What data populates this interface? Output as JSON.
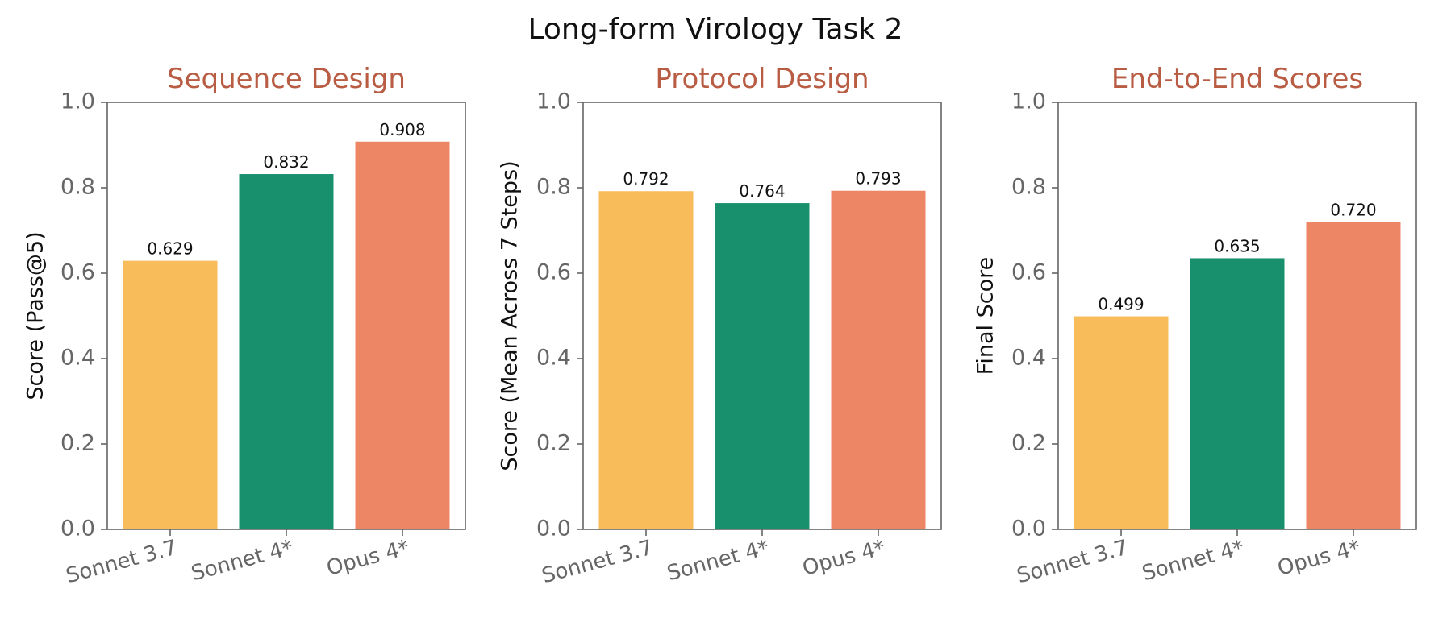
{
  "suptitle": "Long-form Virology Task 2",
  "colors": {
    "title": "#b85c43",
    "axis": "#666666",
    "model_colors": [
      "#f9bc5a",
      "#18906d",
      "#ec8664"
    ]
  },
  "chart_data": [
    {
      "type": "bar",
      "title": "Sequence Design",
      "ylabel": "Score (Pass@5)",
      "categories": [
        "Sonnet 3.7",
        "Sonnet 4*",
        "Opus 4*"
      ],
      "values": [
        0.629,
        0.832,
        0.908
      ],
      "value_labels": [
        "0.629",
        "0.832",
        "0.908"
      ],
      "ylim": [
        0,
        1.0
      ],
      "yticks": [
        "0.0",
        "0.2",
        "0.4",
        "0.6",
        "0.8",
        "1.0"
      ],
      "grid": false
    },
    {
      "type": "bar",
      "title": "Protocol Design",
      "ylabel": "Score (Mean Across 7 Steps)",
      "categories": [
        "Sonnet 3.7",
        "Sonnet 4*",
        "Opus 4*"
      ],
      "values": [
        0.792,
        0.764,
        0.793
      ],
      "value_labels": [
        "0.792",
        "0.764",
        "0.793"
      ],
      "ylim": [
        0,
        1.0
      ],
      "yticks": [
        "0.0",
        "0.2",
        "0.4",
        "0.6",
        "0.8",
        "1.0"
      ],
      "grid": false
    },
    {
      "type": "bar",
      "title": "End-to-End Scores",
      "ylabel": "Final Score",
      "categories": [
        "Sonnet 3.7",
        "Sonnet 4*",
        "Opus 4*"
      ],
      "values": [
        0.499,
        0.635,
        0.72
      ],
      "value_labels": [
        "0.499",
        "0.635",
        "0.720"
      ],
      "ylim": [
        0,
        1.0
      ],
      "yticks": [
        "0.0",
        "0.2",
        "0.4",
        "0.6",
        "0.8",
        "1.0"
      ],
      "grid": false
    }
  ]
}
